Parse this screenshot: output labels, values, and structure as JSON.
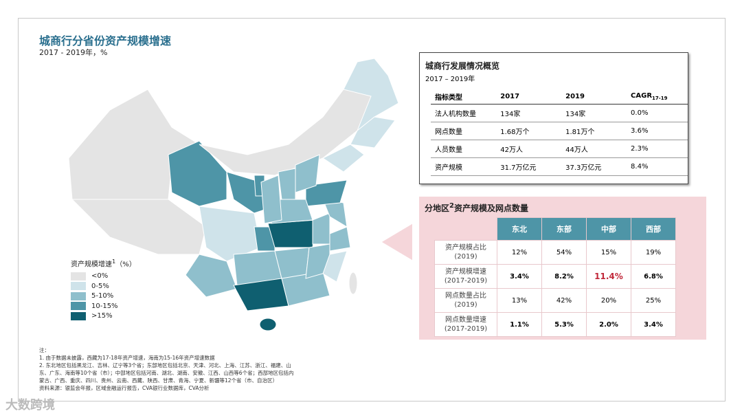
{
  "header": {
    "title": "城商行分省份资产规模增速",
    "subtitle": "2017 - 2019年，%"
  },
  "legend": {
    "title": "资产规模增速",
    "sup": "1",
    "unit": "（%）",
    "items": [
      "<0%",
      "0-5%",
      "5-10%",
      "10-15%",
      ">15%"
    ]
  },
  "overview": {
    "title": "城商行发展情况概览",
    "subtitle": "2017 – 2019年",
    "headers": [
      "指标类型",
      "2017",
      "2019",
      "CAGR"
    ],
    "header_sub": "17-19",
    "rows": [
      [
        "法人机构数量",
        "134家",
        "134家",
        "0.0%"
      ],
      [
        "网点数量",
        "1.68万个",
        "1.81万个",
        "3.6%"
      ],
      [
        "人员数量",
        "42万人",
        "44万人",
        "2.3%"
      ],
      [
        "资产规模",
        "31.7万亿元",
        "37.3万亿元",
        "8.4%"
      ]
    ]
  },
  "regional": {
    "title_pre": "分地区",
    "title_sup": "2",
    "title_post": "资产规模及网点数量",
    "columns": [
      "东北",
      "东部",
      "中部",
      "西部"
    ],
    "rows": [
      {
        "label": [
          "资产规模占比",
          "(2019)"
        ],
        "values": [
          "12%",
          "54%",
          "15%",
          "19%"
        ]
      },
      {
        "label": [
          "资产规模增速",
          "(2017-2019)"
        ],
        "values": [
          "3.4%",
          "8.2%",
          "11.4%",
          "6.8%"
        ]
      },
      {
        "label": [
          "网点数量占比",
          "(2019)"
        ],
        "values": [
          "13%",
          "42%",
          "20%",
          "25%"
        ]
      },
      {
        "label": [
          "网点数量增速",
          "(2017-2019)"
        ],
        "values": [
          "1.1%",
          "5.3%",
          "2.0%",
          "3.4%"
        ]
      }
    ]
  },
  "notes": [
    "注：",
    "1. 由于数据未披露，西藏为17-18年资产增速，海南为15-16年资产增速数据",
    "2. 东北地区包括黑龙江、吉林、辽宁等3个省；东部地区包括北京、天津、河北、上海、江苏、浙江、福建、山",
    "东、广东、海南等10个省（市）；中部地区包括河南、湖北、湖南、安徽、江西、山西等6个省；西部地区包括内",
    "蒙古、广西、重庆、四川、贵州、云南、西藏、陕西、甘肃、青海、宁夏、新疆等12个省（市、自治区）",
    "资料来源：银监会年报，区域金融运行报告，CVA银行业数据库，CVA分析"
  ],
  "watermark": "大数跨境"
}
